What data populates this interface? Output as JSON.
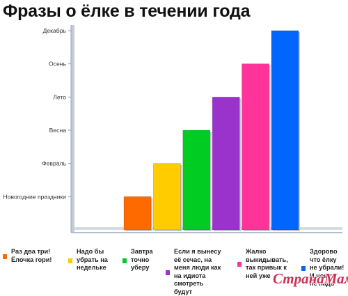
{
  "chart_data": {
    "type": "bar",
    "title": "Фразы о ёлке в течении года",
    "xlabel": "",
    "ylabel": "",
    "y_tick_labels": [
      "Новогодние праздники",
      "Февраль",
      "Весна",
      "Лето",
      "Осень",
      "Декабрь"
    ],
    "ylim": [
      0,
      6
    ],
    "grid": false,
    "legend_position": "bottom",
    "series": [
      {
        "name": "Раз два три! Ёлочка гори!",
        "lines": [
          "Раз два три!",
          "Ёлочка гори!"
        ],
        "value": 1,
        "color": "#ff6a00"
      },
      {
        "name": "Надо бы убрать на недельке",
        "lines": [
          "Надо бы",
          "убрать на",
          "недельке"
        ],
        "value": 2,
        "color": "#ffcc00"
      },
      {
        "name": "Завтра точно уберу",
        "lines": [
          "Завтра",
          "точно",
          "уберу"
        ],
        "value": 3,
        "color": "#00cc22"
      },
      {
        "name": "Если я вынесу её сечас, на меня люди как на идиота смотреть будут",
        "lines": [
          "Если я вынесу",
          "её сечас, на",
          "меня люди как",
          "на идиота",
          "смотреть",
          "будут"
        ],
        "value": 4,
        "color": "#9933cc"
      },
      {
        "name": "Жалко выкидывать, так привык к ней уже",
        "lines": [
          "Жалко",
          "выкидывать,",
          "так привык к",
          "ней уже"
        ],
        "value": 5,
        "color": "#ff3399"
      },
      {
        "name": "Здорово что ёлку не убрали! И новую не надо",
        "lines": [
          "Здорово",
          "что ёлку",
          "не убрали!",
          "И новую",
          "не надо"
        ],
        "value": 6,
        "color": "#0066ff"
      }
    ]
  },
  "watermark": "СтранаМам"
}
